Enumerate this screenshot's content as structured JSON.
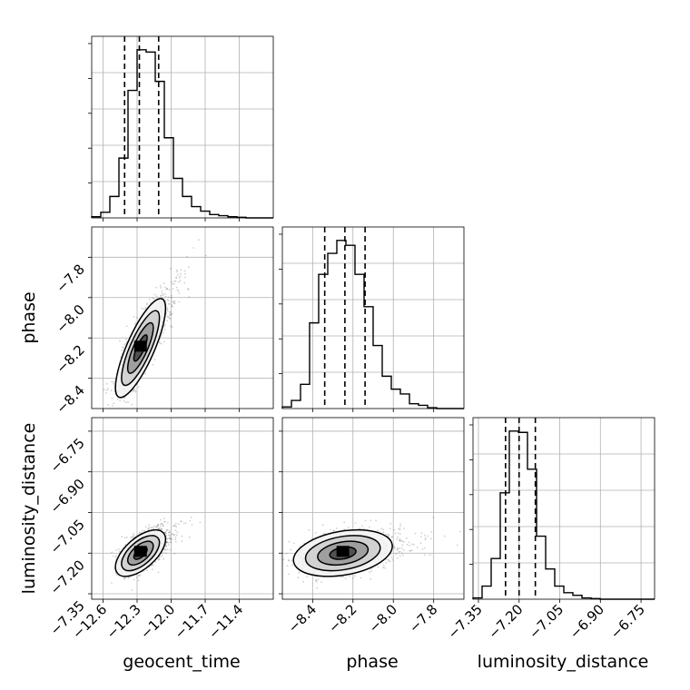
{
  "chart_data": {
    "type": "corner",
    "parameters": [
      "geocent_time",
      "phase",
      "luminosity_distance"
    ],
    "grid": true,
    "marginals": [
      {
        "parameter": "geocent_time",
        "range": [
          -12.7,
          -11.1
        ],
        "ticks": [
          -12.6,
          -12.3,
          -12.0,
          -11.7,
          -11.4
        ],
        "tick_labels": [
          "−12.6",
          "−12.3",
          "−12.0",
          "−11.7",
          "−11.4"
        ],
        "quantiles": [
          -12.41,
          -12.28,
          -12.11
        ],
        "histogram": {
          "edges_start": -12.7,
          "bin_width": 0.08,
          "counts": [
            0.1,
            0.5,
            1.9,
            5.3,
            11.3,
            14.9,
            14.7,
            12.1,
            7.1,
            3.5,
            1.9,
            1.0,
            0.6,
            0.3,
            0.2,
            0.1,
            0.05,
            0,
            0,
            0
          ]
        }
      },
      {
        "parameter": "phase",
        "range": [
          -8.55,
          -7.65
        ],
        "ticks": [
          -8.4,
          -8.2,
          -8.0,
          -7.8
        ],
        "tick_labels": [
          "−8.4",
          "−8.2",
          "−8.0",
          "−7.8"
        ],
        "quantiles": [
          -8.34,
          -8.24,
          -8.14
        ],
        "histogram": {
          "edges_start": -8.55,
          "bin_width": 0.045,
          "counts": [
            0.1,
            0.5,
            1.5,
            5.3,
            8.3,
            9.6,
            10.4,
            10.1,
            8.3,
            6.3,
            3.9,
            2.0,
            1.2,
            0.9,
            0.3,
            0.2,
            0.05,
            0,
            0,
            0
          ]
        }
      },
      {
        "parameter": "luminosity_distance",
        "range": [
          -7.37,
          -6.7
        ],
        "ticks": [
          -7.35,
          -7.2,
          -7.05,
          -6.9,
          -6.75
        ],
        "tick_labels": [
          "−7.35",
          "−7.20",
          "−7.05",
          "−6.90",
          "−6.75"
        ],
        "quantiles": [
          -7.25,
          -7.2,
          -7.14
        ],
        "histogram": {
          "edges_start": -7.37,
          "bin_width": 0.0335,
          "counts": [
            0.1,
            1.0,
            3.1,
            8.1,
            12.8,
            12.7,
            9.9,
            4.8,
            2.3,
            1.0,
            0.5,
            0.3,
            0.1,
            0.05,
            0,
            0,
            0,
            0,
            0,
            0
          ]
        }
      }
    ],
    "joint": [
      {
        "x": "geocent_time",
        "y": "phase",
        "center": [
          -12.27,
          -8.25
        ],
        "sd": [
          0.09,
          0.1
        ],
        "corr": 0.8
      },
      {
        "x": "geocent_time",
        "y": "luminosity_distance",
        "center": [
          -12.27,
          -7.2
        ],
        "sd": [
          0.09,
          0.035
        ],
        "corr": 0.6
      },
      {
        "x": "phase",
        "y": "luminosity_distance",
        "center": [
          -8.25,
          -7.2
        ],
        "sd": [
          0.1,
          0.035
        ],
        "corr": 0.3
      }
    ],
    "axis_labels": {
      "x": [
        "geocent_time",
        "phase",
        "luminosity_distance"
      ],
      "y": [
        "phase",
        "luminosity_distance"
      ]
    }
  }
}
